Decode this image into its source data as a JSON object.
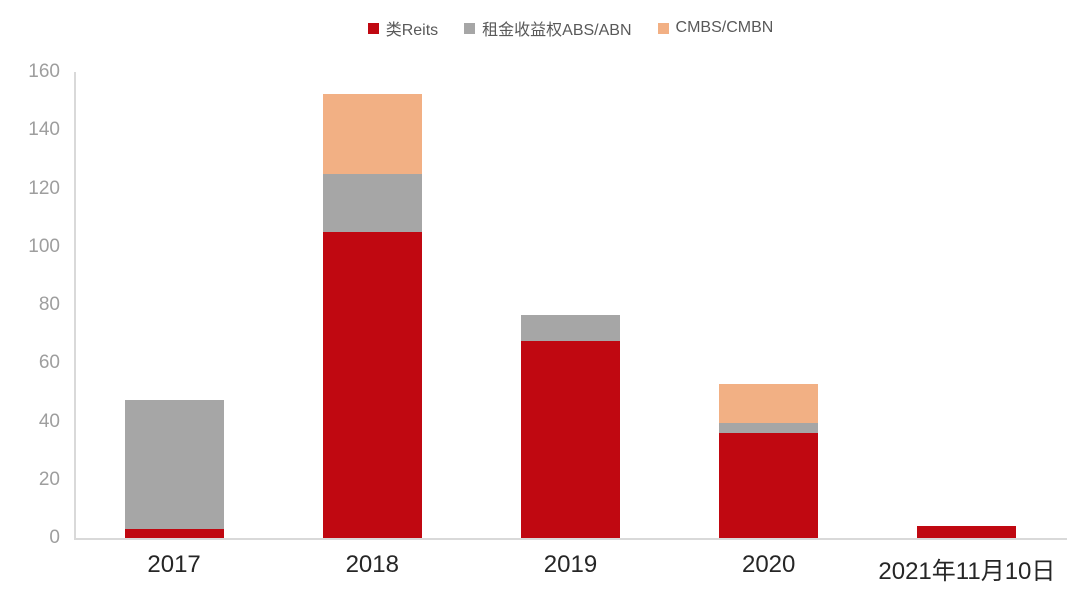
{
  "chart_data": {
    "type": "bar",
    "stacked": true,
    "title": "",
    "xlabel": "",
    "ylabel": "",
    "categories": [
      "2017",
      "2018",
      "2019",
      "2020",
      "2021年11月10日"
    ],
    "series": [
      {
        "name": "类Reits",
        "color": "#C00811",
        "values": [
          3,
          105,
          67.5,
          36,
          4
        ]
      },
      {
        "name": "租金收益权ABS/ABN",
        "color": "#A6A6A6",
        "values": [
          44.5,
          20,
          9,
          3.5,
          0
        ]
      },
      {
        "name": "CMBS/CMBN",
        "color": "#F2B084",
        "values": [
          0,
          27.5,
          0,
          13.5,
          0
        ]
      }
    ],
    "ylim": [
      0,
      160
    ],
    "yticks": [
      0,
      20,
      40,
      60,
      80,
      100,
      120,
      140,
      160
    ],
    "grid": false,
    "legend_position": "top",
    "bar_width_ratio": 0.5
  },
  "colors": {
    "background": "#FFFFFF",
    "axis_line": "#D9D9D9",
    "y_tick_text": "#9E9E9E",
    "x_tick_text": "#262626",
    "legend_text": "#595959"
  }
}
